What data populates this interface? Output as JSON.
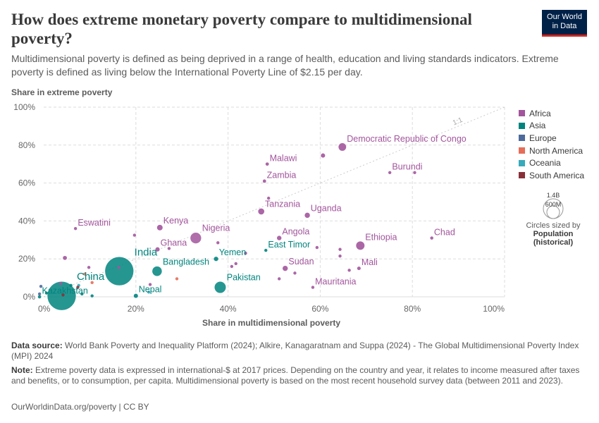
{
  "header": {
    "title": "How does extreme monetary poverty compare to multidimensional poverty?",
    "subtitle": "Multidimensional poverty is defined as being deprived in a range of health, education and living standards indicators. Extreme poverty is defined as living below the International Poverty Line of $2.15 per day.",
    "logo_line1": "Our World",
    "logo_line2": "in Data"
  },
  "legend": {
    "items": [
      {
        "label": "Africa",
        "color": "#a2559c"
      },
      {
        "label": "Asia",
        "color": "#00847e"
      },
      {
        "label": "Europe",
        "color": "#4c6a9c"
      },
      {
        "label": "North America",
        "color": "#e56e5a"
      },
      {
        "label": "Oceania",
        "color": "#38aaba"
      },
      {
        "label": "South America",
        "color": "#883039"
      }
    ],
    "size_big": "1.4B",
    "size_small": "600M",
    "size_caption": "Circles sized by",
    "size_variable": "Population",
    "size_variable_sub": "(historical)"
  },
  "chart_data": {
    "type": "scatter",
    "ylabel": "Share in extreme poverty",
    "xlabel": "Share in multidimensional poverty",
    "xlim": [
      0,
      100
    ],
    "ylim": [
      0,
      100
    ],
    "x_ticks": [
      "0%",
      "20%",
      "40%",
      "60%",
      "80%",
      "100%"
    ],
    "y_ticks": [
      "0%",
      "20%",
      "40%",
      "60%",
      "80%",
      "100%"
    ],
    "grid": true,
    "reference_line_label": "1:1",
    "size_variable": "Population (historical)",
    "points": [
      {
        "label": "Democratic Republic of Congo",
        "region": "Africa",
        "x": 64.8,
        "y": 79,
        "pop": 99
      },
      {
        "label": "Malawi",
        "region": "Africa",
        "x": 48.5,
        "y": 70,
        "pop": 19
      },
      {
        "label": "",
        "region": "Africa",
        "x": 60.6,
        "y": 74.5,
        "pop": 31
      },
      {
        "label": "Burundi",
        "region": "Africa",
        "x": 75.1,
        "y": 65.5,
        "pop": 12
      },
      {
        "label": "",
        "region": "Africa",
        "x": 80.5,
        "y": 65.5,
        "pop": 6
      },
      {
        "label": "Zambia",
        "region": "Africa",
        "x": 47.9,
        "y": 61,
        "pop": 19
      },
      {
        "label": "",
        "region": "Africa",
        "x": 48.8,
        "y": 52,
        "pop": 8
      },
      {
        "label": "Tanzania",
        "region": "Africa",
        "x": 47.2,
        "y": 45,
        "pop": 63
      },
      {
        "label": "Uganda",
        "region": "Africa",
        "x": 57.2,
        "y": 43,
        "pop": 46
      },
      {
        "label": "Eswatini",
        "region": "Africa",
        "x": 6.9,
        "y": 36,
        "pop": 1
      },
      {
        "label": "Kenya",
        "region": "Africa",
        "x": 25.2,
        "y": 36.5,
        "pop": 53
      },
      {
        "label": "",
        "region": "Africa",
        "x": 19.7,
        "y": 32.5,
        "pop": 3
      },
      {
        "label": "Nigeria",
        "region": "Africa",
        "x": 33.0,
        "y": 31,
        "pop": 213
      },
      {
        "label": "Chad",
        "region": "Africa",
        "x": 84.2,
        "y": 31,
        "pop": 17
      },
      {
        "label": "Angola",
        "region": "Africa",
        "x": 51.1,
        "y": 31,
        "pop": 34
      },
      {
        "label": "Ghana",
        "region": "Africa",
        "x": 24.7,
        "y": 25,
        "pop": 32
      },
      {
        "label": "",
        "region": "Africa",
        "x": 37.8,
        "y": 28.5,
        "pop": 3
      },
      {
        "label": "Ethiopia",
        "region": "Africa",
        "x": 68.7,
        "y": 27,
        "pop": 120
      },
      {
        "label": "",
        "region": "Africa",
        "x": 59.3,
        "y": 26,
        "pop": 8
      },
      {
        "label": "",
        "region": "Africa",
        "x": 64.3,
        "y": 25,
        "pop": 15
      },
      {
        "label": "",
        "region": "Africa",
        "x": 43.8,
        "y": 23,
        "pop": 17
      },
      {
        "label": "",
        "region": "Africa",
        "x": 64.3,
        "y": 21.5,
        "pop": 8
      },
      {
        "label": "",
        "region": "Africa",
        "x": 4.6,
        "y": 20.5,
        "pop": 28
      },
      {
        "label": "",
        "region": "Africa",
        "x": 41.7,
        "y": 17.5,
        "pop": 5
      },
      {
        "label": "",
        "region": "Africa",
        "x": 40.8,
        "y": 16,
        "pop": 8
      },
      {
        "label": "Sudan",
        "region": "Africa",
        "x": 52.4,
        "y": 15,
        "pop": 46
      },
      {
        "label": "Mali",
        "region": "Africa",
        "x": 68.4,
        "y": 15,
        "pop": 21
      },
      {
        "label": "",
        "region": "Africa",
        "x": 66.3,
        "y": 14,
        "pop": 3
      },
      {
        "label": "",
        "region": "Africa",
        "x": 54.5,
        "y": 12.5,
        "pop": 3
      },
      {
        "label": "",
        "region": "Africa",
        "x": 51.1,
        "y": 9.5,
        "pop": 1
      },
      {
        "label": "",
        "region": "Africa",
        "x": 9.8,
        "y": 15.5,
        "pop": 1
      },
      {
        "label": "",
        "region": "Africa",
        "x": 3.7,
        "y": 7,
        "pop": 1
      },
      {
        "label": "",
        "region": "Africa",
        "x": 16.3,
        "y": 15.5,
        "pop": 1
      },
      {
        "label": "",
        "region": "Africa",
        "x": 23.1,
        "y": 6.5,
        "pop": 1
      },
      {
        "label": "",
        "region": "Africa",
        "x": 27.2,
        "y": 25.5,
        "pop": 1
      },
      {
        "label": "Mauritania",
        "region": "Africa",
        "x": 58.4,
        "y": 5,
        "pop": 5
      },
      {
        "label": "India",
        "region": "Asia",
        "x": 16.4,
        "y": 13.5,
        "pop": 1400
      },
      {
        "label": "China",
        "region": "Asia",
        "x": 3.9,
        "y": 0.5,
        "pop": 1410
      },
      {
        "label": "Bangladesh",
        "region": "Asia",
        "x": 24.6,
        "y": 13.5,
        "pop": 169
      },
      {
        "label": "Pakistan",
        "region": "Asia",
        "x": 38.3,
        "y": 5,
        "pop": 231
      },
      {
        "label": "Yemen",
        "region": "Asia",
        "x": 37.4,
        "y": 20,
        "pop": 33
      },
      {
        "label": "East Timor",
        "region": "Asia",
        "x": 48.2,
        "y": 24.5,
        "pop": 1
      },
      {
        "label": "Nepal",
        "region": "Asia",
        "x": 20.0,
        "y": 0.5,
        "pop": 30
      },
      {
        "label": "Kazakhstan",
        "region": "Asia",
        "x": -0.9,
        "y": 0,
        "pop": 19
      },
      {
        "label": "",
        "region": "Asia",
        "x": 5.9,
        "y": 6,
        "pop": 5
      },
      {
        "label": "",
        "region": "Asia",
        "x": 8.3,
        "y": 1.5,
        "pop": 10
      },
      {
        "label": "",
        "region": "Asia",
        "x": 0.6,
        "y": 2,
        "pop": 6
      },
      {
        "label": "",
        "region": "Asia",
        "x": 10.5,
        "y": 0.5,
        "pop": 4
      },
      {
        "label": "",
        "region": "Europe",
        "x": -0.9,
        "y": 1.5,
        "pop": 3
      },
      {
        "label": "",
        "region": "Europe",
        "x": -0.6,
        "y": 5.5,
        "pop": 1
      },
      {
        "label": "",
        "region": "North America",
        "x": 28.9,
        "y": 9.5,
        "pop": 11
      },
      {
        "label": "",
        "region": "North America",
        "x": 8.9,
        "y": 12,
        "pop": 5
      },
      {
        "label": "",
        "region": "North America",
        "x": 10.5,
        "y": 7.5,
        "pop": 5
      },
      {
        "label": "",
        "region": "Oceania",
        "x": 22.8,
        "y": 2.5,
        "pop": 1
      },
      {
        "label": "",
        "region": "Oceania",
        "x": 7.6,
        "y": 6,
        "pop": 1
      },
      {
        "label": "",
        "region": "South America",
        "x": 4.2,
        "y": 1,
        "pop": 7
      },
      {
        "label": "",
        "region": "South America",
        "x": 7.4,
        "y": 5,
        "pop": 1
      }
    ]
  },
  "footer": {
    "source_label": "Data source:",
    "source_text": " World Bank Poverty and Inequality Platform (2024); Alkire, Kanagaratnam and Suppa (2024) - The Global Multidimensional Poverty Index (MPI) 2024",
    "note_label": "Note:",
    "note_text": " Extreme poverty data is expressed in international-$ at 2017 prices. Depending on the country and year, it relates to income measured after taxes and benefits, or to consumption, per capita. Multidimensional poverty is based on the most recent household survey data (between 2011 and 2023).",
    "credit": "OurWorldinData.org/poverty | CC BY"
  }
}
